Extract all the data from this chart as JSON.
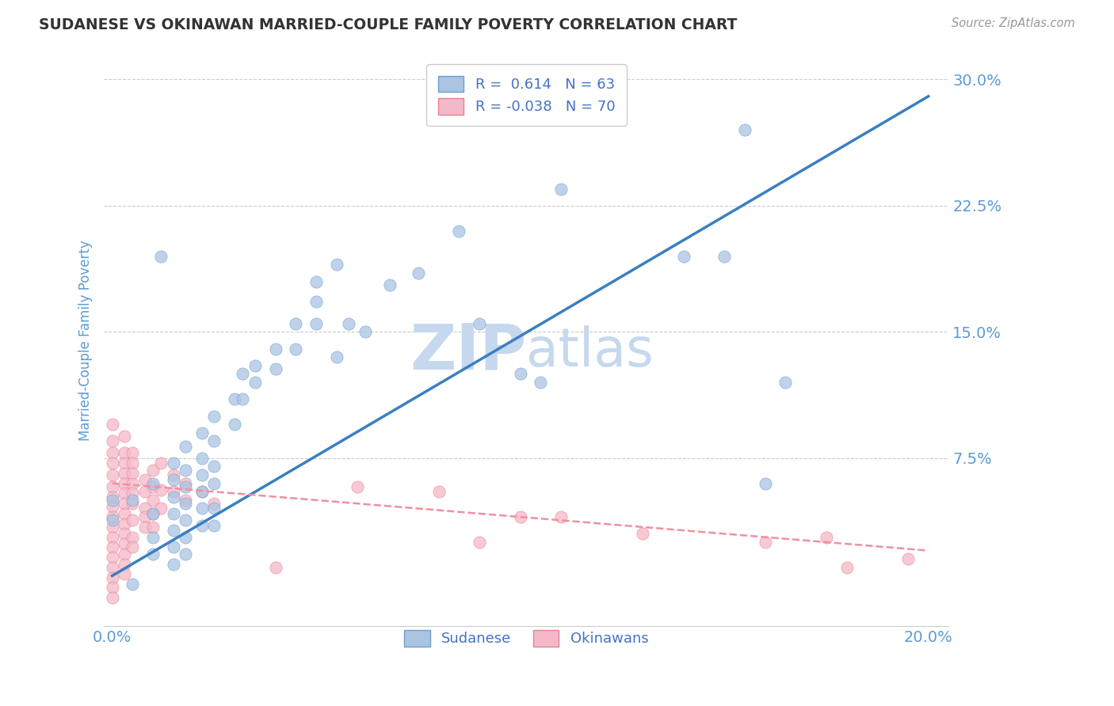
{
  "title": "SUDANESE VS OKINAWAN MARRIED-COUPLE FAMILY POVERTY CORRELATION CHART",
  "source": "Source: ZipAtlas.com",
  "ylabel": "Married-Couple Family Poverty",
  "xlim": [
    -0.002,
    0.205
  ],
  "ylim": [
    -0.025,
    0.315
  ],
  "xticks": [
    0.0,
    0.05,
    0.1,
    0.15,
    0.2
  ],
  "xtick_labels": [
    "0.0%",
    "",
    "",
    "",
    "20.0%"
  ],
  "yticks": [
    0.075,
    0.15,
    0.225,
    0.3
  ],
  "ytick_labels": [
    "7.5%",
    "15.0%",
    "22.5%",
    "30.0%"
  ],
  "sudanese_color": "#aac4e2",
  "sudanese_edge_color": "#6aa0d0",
  "okinawan_color": "#f5b8c8",
  "okinawan_edge_color": "#e88090",
  "sudanese_line_color": "#3a7fc1",
  "okinawan_line_color": "#f090a0",
  "legend_R_sudanese": "0.614",
  "legend_N_sudanese": "63",
  "legend_R_okinawan": "-0.038",
  "legend_N_okinawan": "70",
  "watermark": "ZIPatlas",
  "watermark_color": "#d0dff0",
  "background_color": "#ffffff",
  "grid_color": "#cccccc",
  "title_color": "#333333",
  "axis_label_color": "#5b9bd5",
  "tick_label_color": "#5b9bd5",
  "sudanese_points": [
    [
      0.0,
      0.05
    ],
    [
      0.0,
      0.038
    ],
    [
      0.005,
      0.05
    ],
    [
      0.005,
      0.0
    ],
    [
      0.01,
      0.06
    ],
    [
      0.01,
      0.042
    ],
    [
      0.01,
      0.028
    ],
    [
      0.01,
      0.018
    ],
    [
      0.012,
      0.195
    ],
    [
      0.015,
      0.072
    ],
    [
      0.015,
      0.062
    ],
    [
      0.015,
      0.052
    ],
    [
      0.015,
      0.042
    ],
    [
      0.015,
      0.032
    ],
    [
      0.015,
      0.022
    ],
    [
      0.015,
      0.012
    ],
    [
      0.018,
      0.082
    ],
    [
      0.018,
      0.068
    ],
    [
      0.018,
      0.058
    ],
    [
      0.018,
      0.048
    ],
    [
      0.018,
      0.038
    ],
    [
      0.018,
      0.028
    ],
    [
      0.018,
      0.018
    ],
    [
      0.022,
      0.09
    ],
    [
      0.022,
      0.075
    ],
    [
      0.022,
      0.065
    ],
    [
      0.022,
      0.055
    ],
    [
      0.022,
      0.045
    ],
    [
      0.022,
      0.035
    ],
    [
      0.025,
      0.1
    ],
    [
      0.025,
      0.085
    ],
    [
      0.025,
      0.07
    ],
    [
      0.025,
      0.06
    ],
    [
      0.025,
      0.045
    ],
    [
      0.025,
      0.035
    ],
    [
      0.03,
      0.11
    ],
    [
      0.03,
      0.095
    ],
    [
      0.032,
      0.125
    ],
    [
      0.032,
      0.11
    ],
    [
      0.035,
      0.13
    ],
    [
      0.035,
      0.12
    ],
    [
      0.04,
      0.14
    ],
    [
      0.04,
      0.128
    ],
    [
      0.045,
      0.155
    ],
    [
      0.045,
      0.14
    ],
    [
      0.05,
      0.168
    ],
    [
      0.05,
      0.155
    ],
    [
      0.055,
      0.135
    ],
    [
      0.058,
      0.155
    ],
    [
      0.062,
      0.15
    ],
    [
      0.068,
      0.178
    ],
    [
      0.075,
      0.185
    ],
    [
      0.085,
      0.21
    ],
    [
      0.09,
      0.155
    ],
    [
      0.1,
      0.125
    ],
    [
      0.105,
      0.12
    ],
    [
      0.05,
      0.18
    ],
    [
      0.055,
      0.19
    ],
    [
      0.11,
      0.235
    ],
    [
      0.14,
      0.195
    ],
    [
      0.15,
      0.195
    ],
    [
      0.155,
      0.27
    ],
    [
      0.165,
      0.12
    ],
    [
      0.16,
      0.06
    ]
  ],
  "okinawan_points": [
    [
      0.0,
      0.095
    ],
    [
      0.0,
      0.085
    ],
    [
      0.0,
      0.078
    ],
    [
      0.0,
      0.072
    ],
    [
      0.0,
      0.065
    ],
    [
      0.0,
      0.058
    ],
    [
      0.0,
      0.052
    ],
    [
      0.0,
      0.046
    ],
    [
      0.0,
      0.04
    ],
    [
      0.0,
      0.034
    ],
    [
      0.0,
      0.028
    ],
    [
      0.0,
      0.022
    ],
    [
      0.0,
      0.016
    ],
    [
      0.0,
      0.01
    ],
    [
      0.0,
      0.004
    ],
    [
      0.0,
      -0.002
    ],
    [
      0.0,
      -0.008
    ],
    [
      0.003,
      0.088
    ],
    [
      0.003,
      0.078
    ],
    [
      0.003,
      0.072
    ],
    [
      0.003,
      0.066
    ],
    [
      0.003,
      0.06
    ],
    [
      0.003,
      0.054
    ],
    [
      0.003,
      0.048
    ],
    [
      0.003,
      0.042
    ],
    [
      0.003,
      0.036
    ],
    [
      0.003,
      0.03
    ],
    [
      0.003,
      0.024
    ],
    [
      0.003,
      0.018
    ],
    [
      0.003,
      0.012
    ],
    [
      0.003,
      0.006
    ],
    [
      0.005,
      0.078
    ],
    [
      0.005,
      0.072
    ],
    [
      0.005,
      0.066
    ],
    [
      0.005,
      0.06
    ],
    [
      0.005,
      0.054
    ],
    [
      0.005,
      0.048
    ],
    [
      0.005,
      0.038
    ],
    [
      0.005,
      0.028
    ],
    [
      0.005,
      0.022
    ],
    [
      0.008,
      0.062
    ],
    [
      0.008,
      0.055
    ],
    [
      0.008,
      0.045
    ],
    [
      0.008,
      0.04
    ],
    [
      0.008,
      0.034
    ],
    [
      0.01,
      0.068
    ],
    [
      0.01,
      0.058
    ],
    [
      0.01,
      0.05
    ],
    [
      0.01,
      0.042
    ],
    [
      0.01,
      0.034
    ],
    [
      0.012,
      0.072
    ],
    [
      0.012,
      0.056
    ],
    [
      0.012,
      0.045
    ],
    [
      0.015,
      0.065
    ],
    [
      0.015,
      0.055
    ],
    [
      0.018,
      0.06
    ],
    [
      0.018,
      0.05
    ],
    [
      0.022,
      0.055
    ],
    [
      0.025,
      0.048
    ],
    [
      0.04,
      0.01
    ],
    [
      0.06,
      0.058
    ],
    [
      0.08,
      0.055
    ],
    [
      0.09,
      0.025
    ],
    [
      0.1,
      0.04
    ],
    [
      0.11,
      0.04
    ],
    [
      0.13,
      0.03
    ],
    [
      0.16,
      0.025
    ],
    [
      0.175,
      0.028
    ],
    [
      0.18,
      0.01
    ],
    [
      0.195,
      0.015
    ]
  ],
  "sudanese_trendline_x": [
    0.0,
    0.2
  ],
  "sudanese_trendline_y": [
    0.005,
    0.29
  ],
  "okinawan_trendline_x": [
    0.0,
    0.2
  ],
  "okinawan_trendline_y": [
    0.06,
    0.02
  ]
}
